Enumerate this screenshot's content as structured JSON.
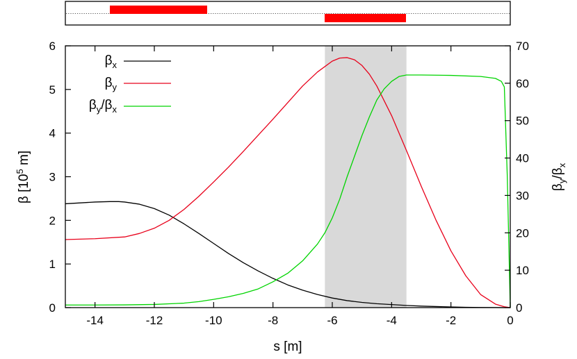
{
  "chart_data": {
    "type": "line",
    "title": "",
    "xlabel": {
      "text": "s [m]"
    },
    "ylabel_left": {
      "prefix": "β [10",
      "sup": "5",
      "suffix": " m]"
    },
    "ylabel_right": {
      "main": "β",
      "sub1": "y",
      "slash": "/β",
      "sub2": "x"
    },
    "xlim": [
      -15,
      0
    ],
    "ylim_left": [
      0,
      6
    ],
    "ylim_right": [
      0,
      70
    ],
    "xticks": [
      "-14",
      "-12",
      "-10",
      "-8",
      "-6",
      "-4",
      "-2",
      "0"
    ],
    "yticks_left": [
      "0",
      "1",
      "2",
      "3",
      "4",
      "5",
      "6"
    ],
    "yticks_right": [
      "0",
      "10",
      "20",
      "30",
      "40",
      "50",
      "60",
      "70"
    ],
    "shaded_region": {
      "x": [
        -6.25,
        -3.5
      ],
      "color": "#d9d9d9"
    },
    "legend_position": "top-left",
    "series": [
      {
        "name": "βx",
        "label": {
          "main": "β",
          "sub": "x"
        },
        "color": "#000000",
        "axis": "left",
        "x": [
          -15,
          -14.5,
          -14,
          -13.5,
          -13.2,
          -13,
          -12.5,
          -12,
          -11.5,
          -11,
          -10.5,
          -10,
          -9.5,
          -9,
          -8.5,
          -8,
          -7.5,
          -7,
          -6.5,
          -6,
          -5.5,
          -5,
          -4.5,
          -4,
          -3.5,
          -3,
          -2.5,
          -2,
          -1.5,
          -1,
          -0.5,
          -0.2,
          0
        ],
        "y": [
          2.38,
          2.4,
          2.42,
          2.43,
          2.43,
          2.42,
          2.37,
          2.27,
          2.12,
          1.92,
          1.7,
          1.47,
          1.24,
          1.03,
          0.84,
          0.67,
          0.52,
          0.4,
          0.3,
          0.22,
          0.16,
          0.12,
          0.09,
          0.07,
          0.05,
          0.035,
          0.025,
          0.015,
          0.008,
          0.004,
          0.0015,
          0.0005,
          0
        ]
      },
      {
        "name": "βy",
        "label": {
          "main": "β",
          "sub": "y"
        },
        "color": "#e8001a",
        "axis": "left",
        "x": [
          -15,
          -14,
          -13,
          -12.5,
          -12,
          -11.5,
          -11,
          -10.5,
          -10,
          -9.5,
          -9,
          -8.5,
          -8,
          -7.5,
          -7,
          -6.5,
          -6,
          -5.75,
          -5.5,
          -5.25,
          -5,
          -4.75,
          -4.5,
          -4,
          -3.5,
          -3,
          -2.5,
          -2,
          -1.5,
          -1,
          -0.5,
          -0.2,
          0
        ],
        "y": [
          1.56,
          1.58,
          1.62,
          1.7,
          1.82,
          2.0,
          2.25,
          2.55,
          2.88,
          3.22,
          3.58,
          3.95,
          4.32,
          4.7,
          5.08,
          5.4,
          5.65,
          5.72,
          5.73,
          5.68,
          5.55,
          5.35,
          5.08,
          4.4,
          3.6,
          2.78,
          2.0,
          1.3,
          0.73,
          0.3,
          0.08,
          0.02,
          0
        ]
      },
      {
        "name": "βy/βx",
        "label": {
          "main": "β",
          "sub1": "y",
          "slash": "/β",
          "sub2": "x"
        },
        "color": "#00d400",
        "axis": "right",
        "x": [
          -15,
          -14,
          -13,
          -12,
          -11,
          -10.5,
          -10,
          -9.5,
          -9,
          -8.5,
          -8,
          -7.5,
          -7,
          -6.5,
          -6.25,
          -6,
          -5.75,
          -5.5,
          -5.25,
          -5,
          -4.75,
          -4.5,
          -4.25,
          -4,
          -3.75,
          -3.5,
          -3,
          -2,
          -1,
          -0.5,
          -0.3,
          -0.2,
          -0.1,
          0
        ],
        "y": [
          0.7,
          0.7,
          0.73,
          0.85,
          1.2,
          1.6,
          2.2,
          2.9,
          3.8,
          5.0,
          6.9,
          9.2,
          12.5,
          17.0,
          20.0,
          24.0,
          29.0,
          35.0,
          40.5,
          46.0,
          51.0,
          55.5,
          58.5,
          60.5,
          61.8,
          62.2,
          62.2,
          62.1,
          61.8,
          61.3,
          60.5,
          59.0,
          35.0,
          0
        ]
      }
    ]
  }
}
